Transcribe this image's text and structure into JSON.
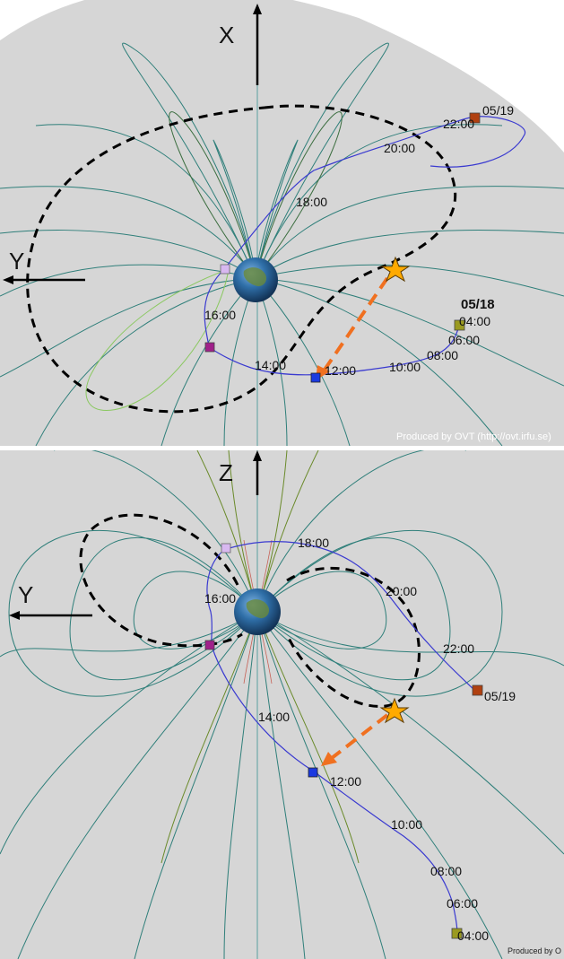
{
  "top": {
    "axis_vertical": "X",
    "axis_horizontal": "Y",
    "date_labels": [
      "05/19",
      "05/18"
    ],
    "time_labels": [
      "22:00",
      "20:00",
      "18:00",
      "16:00",
      "14:00",
      "12:00",
      "10:00",
      "08:00",
      "06:00",
      "04:00"
    ],
    "credit": "Produced by OVT (http://ovt.irfu.se)"
  },
  "bottom": {
    "axis_vertical": "Z",
    "axis_horizontal": "Y",
    "date_labels": [
      "05/19"
    ],
    "time_labels": [
      "18:00",
      "16:00",
      "20:00",
      "22:00",
      "14:00",
      "12:00",
      "10:00",
      "08:00",
      "06:00",
      "04:00"
    ],
    "credit": "Produced by O"
  },
  "colors": {
    "background": "#d6d6d6",
    "field_line": "#2f7f7a",
    "field_line_inner": "#6a8a2a",
    "orbit": "#3a3ad0",
    "dashed_boundary": "#000000",
    "arrow": "#f07020",
    "star": "#ffaa00",
    "marker_blue": "#1a3ae0",
    "marker_purple": "#a0208a",
    "marker_lavender": "#d8b8f0",
    "marker_olive": "#9a9a20",
    "marker_brown": "#b04010"
  },
  "icons": {
    "earth": "earth-globe-icon",
    "star": "star-icon"
  }
}
